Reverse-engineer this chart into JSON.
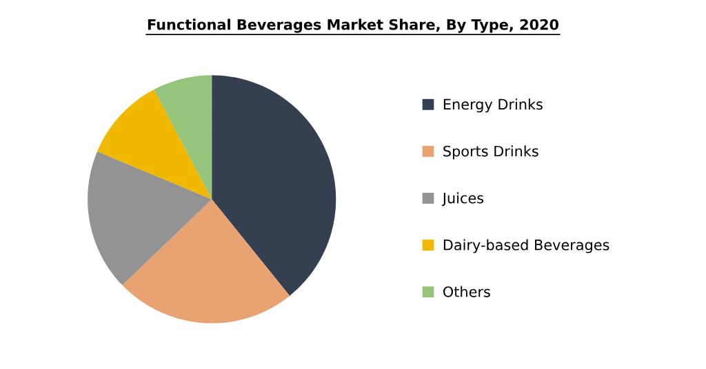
{
  "chart_data": {
    "type": "pie",
    "title": "Functional Beverages Market Share, By Type, 2020",
    "categories": [
      "Energy Drinks",
      "Sports Drinks",
      "Juices",
      "Dairy-based Beverages",
      "Others"
    ],
    "values": [
      39.2,
      23.6,
      18.5,
      11.0,
      7.7
    ],
    "colors": [
      "#343f4f",
      "#e9a272",
      "#939393",
      "#f0b800",
      "#95c47c"
    ],
    "legend": "right"
  }
}
